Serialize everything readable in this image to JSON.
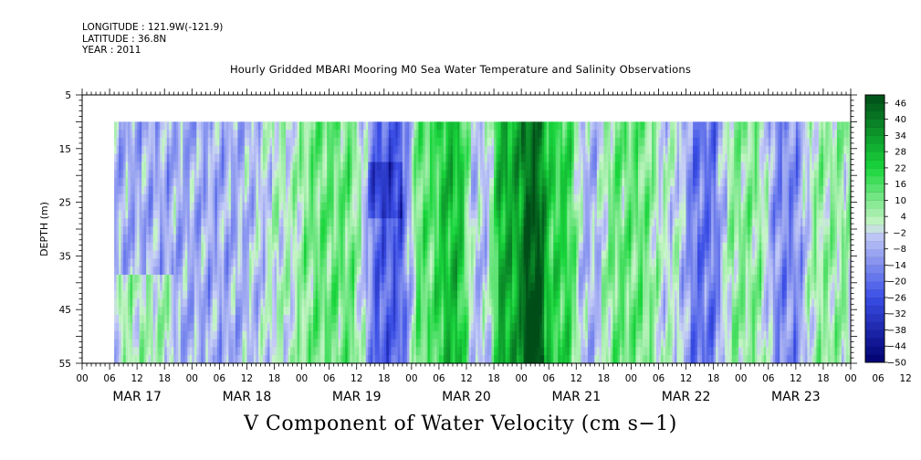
{
  "header": {
    "longitude": "LONGITUDE : 121.9W(-121.9)",
    "latitude": "LATITUDE : 36.8N",
    "year": "YEAR : 2011",
    "title": "Hourly Gridded MBARI Mooring M0 Sea Water Temperature and Salinity Observations"
  },
  "footer": {
    "variable": "V Component of Water Velocity (cm s−1)"
  },
  "chart_data": {
    "type": "heatmap",
    "title": "Hourly Gridded MBARI Mooring M0 Sea Water Temperature and Salinity Observations",
    "variable": "V Component of Water Velocity (cm s−1)",
    "ylabel": "DEPTH (m)",
    "y_axis_inverted": true,
    "ylim": [
      5,
      55
    ],
    "y_ticks": [
      5,
      15,
      25,
      35,
      45,
      55
    ],
    "data_depth_range": [
      10,
      55
    ],
    "x_hour_ticks": [
      "00",
      "06",
      "12",
      "18",
      "00",
      "06",
      "12",
      "18",
      "00",
      "06",
      "12",
      "18",
      "00",
      "06",
      "12",
      "18",
      "00",
      "06",
      "12",
      "18",
      "00",
      "06",
      "12",
      "18",
      "00",
      "06",
      "12",
      "18",
      "00",
      "06",
      "12",
      "18",
      "00"
    ],
    "x_day_labels": [
      "MAR 17",
      "MAR 18",
      "MAR 19",
      "MAR 20",
      "MAR 21",
      "MAR 22",
      "MAR 23"
    ],
    "x_range_hours_from_mar17": [
      0,
      168
    ],
    "data_start_hour": 7,
    "colorbar": {
      "tick_labels": [
        "46",
        "40",
        "34",
        "28",
        "22",
        "16",
        "10",
        "4",
        "−2",
        "−8",
        "−14",
        "−20",
        "−26",
        "−32",
        "−38",
        "−44",
        "−50"
      ],
      "levels": [
        -50,
        -47,
        -44,
        -41,
        -38,
        -35,
        -32,
        -29,
        -26,
        -23,
        -20,
        -17,
        -14,
        -11,
        -8,
        -5,
        -2,
        1,
        4,
        7,
        10,
        13,
        16,
        19,
        22,
        25,
        28,
        31,
        34,
        37,
        40,
        43,
        46,
        49
      ],
      "colors": {
        "neg_min": "#000070",
        "neg_mid": "#3a4ee6",
        "neg_light": "#c6cdf6",
        "pos_light": "#c8f5c8",
        "pos_mid": "#19d63c",
        "pos_max": "#004d18"
      }
    },
    "regions": [
      {
        "hours": [
          7,
          40
        ],
        "dominant_velocity": -8,
        "note": "mostly light blue with green streaks near depth 40-55"
      },
      {
        "hours": [
          40,
          48
        ],
        "dominant_velocity": 2,
        "note": "mixed light blue / light green"
      },
      {
        "hours": [
          48,
          62
        ],
        "dominant_velocity": 12,
        "note": "green band"
      },
      {
        "hours": [
          62,
          72
        ],
        "dominant_velocity": -22,
        "note": "blue core near depth 20-25"
      },
      {
        "hours": [
          72,
          78
        ],
        "dominant_velocity": 14,
        "note": "green"
      },
      {
        "hours": [
          78,
          84
        ],
        "dominant_velocity": 26,
        "note": "strong green, dark core near 06 MAR 20"
      },
      {
        "hours": [
          84,
          90
        ],
        "dominant_velocity": -4,
        "note": "light blue wedge narrowing with depth"
      },
      {
        "hours": [
          90,
          96
        ],
        "dominant_velocity": 30,
        "note": "strong green"
      },
      {
        "hours": [
          96,
          101
        ],
        "dominant_velocity": 40,
        "note": "dark green core reaching 46 near depth 50-55"
      },
      {
        "hours": [
          101,
          108
        ],
        "dominant_velocity": 20,
        "note": "green"
      },
      {
        "hours": [
          108,
          114
        ],
        "dominant_velocity": -6,
        "note": "light blue"
      },
      {
        "hours": [
          114,
          125
        ],
        "dominant_velocity": 12,
        "note": "green"
      },
      {
        "hours": [
          125,
          132
        ],
        "dominant_velocity": 0,
        "note": "mixed"
      },
      {
        "hours": [
          132,
          140
        ],
        "dominant_velocity": -18,
        "note": "blue core"
      },
      {
        "hours": [
          140,
          150
        ],
        "dominant_velocity": 8,
        "note": "light green"
      },
      {
        "hours": [
          150,
          158
        ],
        "dominant_velocity": -14,
        "note": "blue"
      },
      {
        "hours": [
          158,
          168
        ],
        "dominant_velocity": 6,
        "note": "light green / mixed"
      }
    ]
  }
}
